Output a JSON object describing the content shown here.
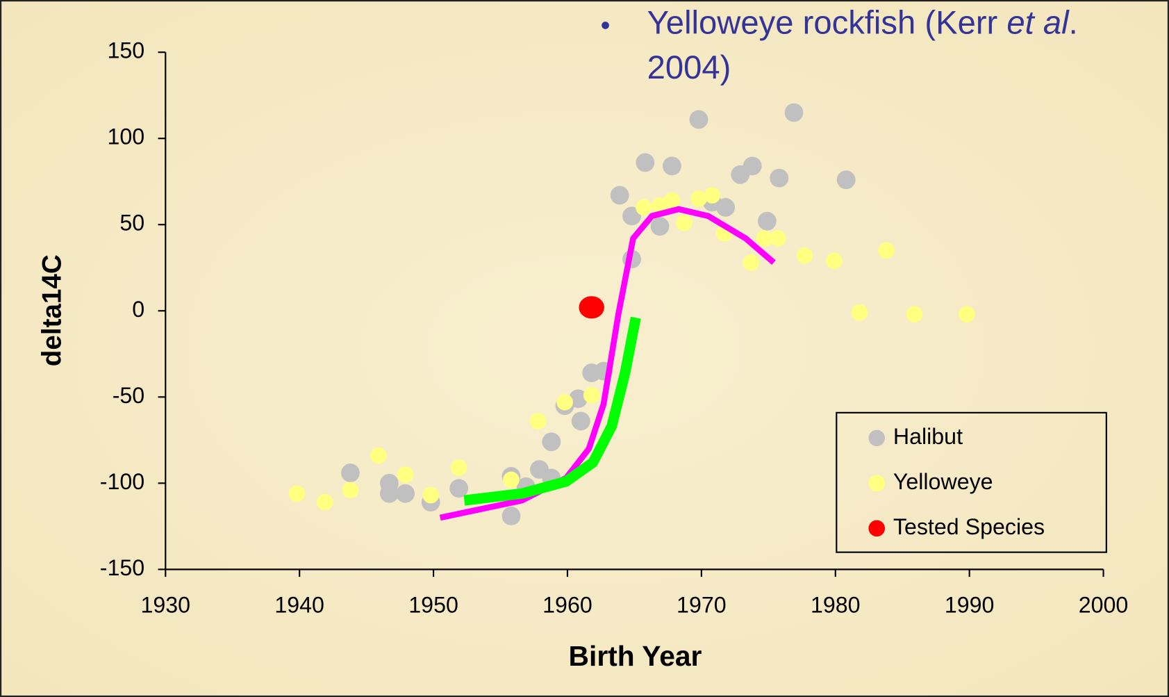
{
  "chart_data": {
    "type": "scatter",
    "annotation": [
      "Yelloweye rockfish (Kerr ",
      "et al",
      ".",
      "2004)"
    ],
    "xlabel": "Birth Year",
    "ylabel": "delta14C",
    "xlim": [
      1930,
      2000
    ],
    "xticks": [
      1930,
      1940,
      1950,
      1960,
      1970,
      1980,
      1990,
      2000
    ],
    "ylim": [
      -150,
      150
    ],
    "yticks": [
      -150,
      -100,
      -50,
      0,
      50,
      100,
      150
    ],
    "legend": "lower right",
    "series": [
      {
        "name": "Halibut",
        "color": "#c0c0c0",
        "x": [
          1943.8,
          1946.7,
          1946.7,
          1947.9,
          1949.8,
          1951.9,
          1955.8,
          1955.8,
          1956.9,
          1957.9,
          1958.8,
          1958.8,
          1959.8,
          1960.8,
          1961,
          1961.8,
          1962.7,
          1963.9,
          1964.8,
          1964.8,
          1965.8,
          1966.9,
          1967.8,
          1969.8,
          1970.8,
          1971.8,
          1972.9,
          1973.8,
          1974.9,
          1975.8,
          1976.9,
          1980.8
        ],
        "values": [
          -94,
          -100,
          -106,
          -106,
          -111,
          -103,
          -96,
          -119,
          -102,
          -92,
          -97,
          -76,
          -55,
          -51,
          -64,
          -36,
          -35,
          67,
          55,
          30,
          86,
          49,
          84,
          111,
          63,
          60,
          79,
          84,
          52,
          77,
          115,
          76
        ]
      },
      {
        "name": "Yelloweye",
        "color": "#ffff80",
        "x": [
          1939.8,
          1941.9,
          1943.8,
          1945.9,
          1947.9,
          1949.8,
          1951.9,
          1955.8,
          1957.8,
          1959.8,
          1961.8,
          1965.7,
          1966.9,
          1967.8,
          1969.8,
          1970.8,
          1968.7,
          1971.7,
          1973.7,
          1974.7,
          1975.7,
          1977.7,
          1979.9,
          1983.8,
          1981.8,
          1985.9,
          1989.8
        ],
        "values": [
          -106,
          -111,
          -104,
          -84,
          -95,
          -107,
          -91,
          -98,
          -64,
          -53,
          -49,
          60,
          61,
          64,
          65,
          67,
          51,
          45,
          28,
          42,
          42,
          32,
          29,
          35,
          -1,
          -2,
          -2
        ]
      },
      {
        "name": "Tested Species",
        "color": "#ff0000",
        "x": [
          1961.8
        ],
        "values": [
          2
        ]
      },
      {
        "type": "line",
        "color": "#ff00ff",
        "x": [
          1950.5,
          1956.6,
          1959.9,
          1961.6,
          1962.7,
          1963.8,
          1964.9,
          1966.3,
          1968.3,
          1970.5,
          1973.3,
          1975.4
        ],
        "values": [
          -120,
          -110,
          -97,
          -80,
          -54,
          -2,
          42,
          55,
          59,
          55,
          42,
          28
        ]
      },
      {
        "type": "line",
        "color": "#00ff00",
        "x": [
          1952.3,
          1956.6,
          1959.9,
          1961.9,
          1963.3,
          1964.3,
          1965.1
        ],
        "values": [
          -110,
          -106,
          -99,
          -88,
          -67,
          -36,
          -4
        ]
      }
    ]
  }
}
